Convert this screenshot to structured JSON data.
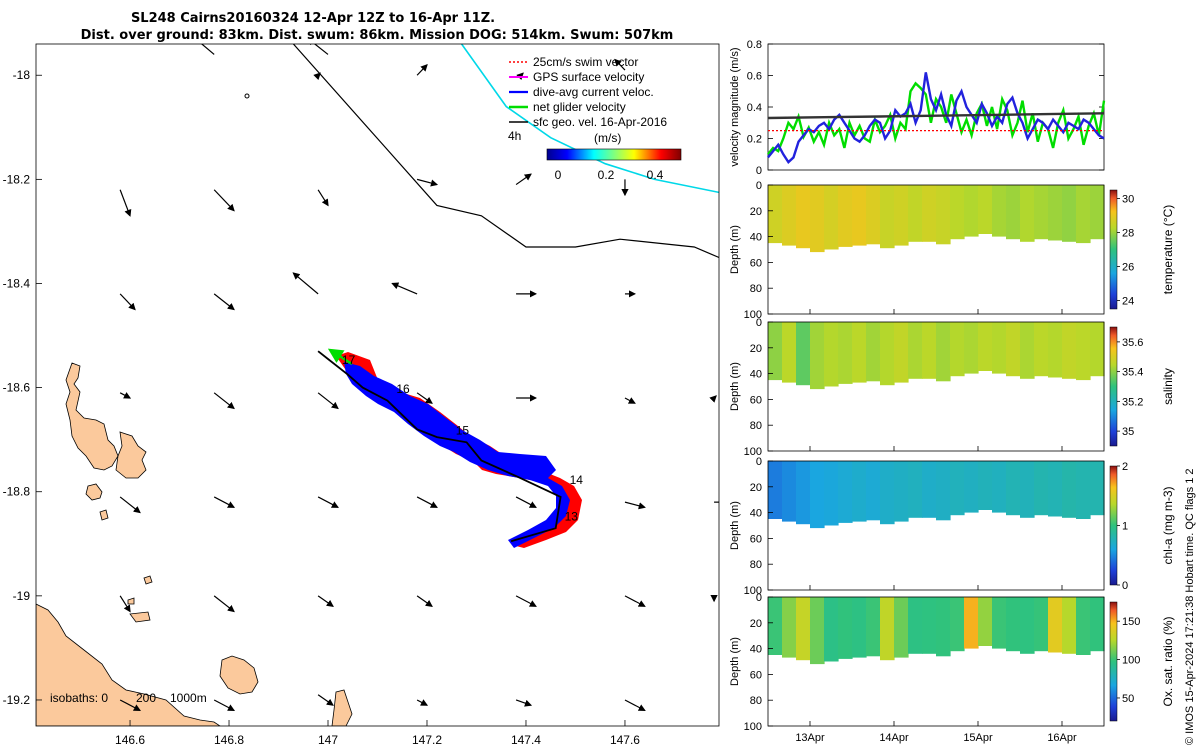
{
  "header": {
    "title_line1": "SL248 Cairns20160324 12-Apr 12Z to 16-Apr 11Z.",
    "title_line2": "Dist. over ground: 83km. Dist. swum: 86km. Mission DOG: 514km. Swum: 507km"
  },
  "colors": {
    "land": "#fbc99c",
    "swim": "#ff0000",
    "gps": "#ff00ff",
    "dive": "#0000ff",
    "net": "#00dd00",
    "geo": "#000000",
    "isobath": "#00d8e8"
  },
  "chart_data": [
    {
      "type": "map",
      "xlim": [
        146.41,
        147.79
      ],
      "ylim": [
        -19.25,
        -17.94
      ],
      "xticks": [
        "146.6",
        "146.8",
        "147",
        "147.2",
        "147.4",
        "147.6"
      ],
      "xtick_values": [
        146.6,
        146.8,
        147.0,
        147.2,
        147.4,
        147.6
      ],
      "yticks": [
        "-18",
        "-18.2",
        "-18.4",
        "-18.6",
        "-18.8",
        "-19",
        "-19.2"
      ],
      "ytick_values": [
        -18.0,
        -18.2,
        -18.4,
        -18.6,
        -18.8,
        -19.0,
        -19.2
      ],
      "legend": {
        "entries": [
          "25cm/s swim vector",
          "GPS surface velocity",
          "dive-avg current veloc.",
          "net glider velocity",
          "sfc geo. vel. 16-Apr-2016"
        ],
        "scale_label": "4h"
      },
      "colorbar": {
        "label": "(m/s)",
        "ticks": [
          "0",
          "0.2",
          "0.4"
        ],
        "range": [
          0,
          0.5
        ]
      },
      "isobaths_label": "isobaths: 0",
      "isobath_depths": [
        "200",
        "1000m"
      ],
      "track_day_labels": [
        "13",
        "14",
        "15",
        "16",
        "17"
      ],
      "track_day_points": [
        [
          147.47,
          -18.855
        ],
        [
          147.48,
          -18.785
        ],
        [
          147.25,
          -18.69
        ],
        [
          147.13,
          -18.61
        ],
        [
          147.02,
          -18.555
        ]
      ],
      "glider_track": [
        [
          147.37,
          -18.895
        ],
        [
          147.46,
          -18.87
        ],
        [
          147.47,
          -18.81
        ],
        [
          147.38,
          -18.77
        ],
        [
          147.31,
          -18.74
        ],
        [
          147.28,
          -18.705
        ],
        [
          147.22,
          -18.695
        ],
        [
          147.18,
          -18.68
        ],
        [
          147.12,
          -18.625
        ],
        [
          147.07,
          -18.6
        ],
        [
          147.04,
          -18.575
        ],
        [
          147.0,
          -18.545
        ],
        [
          146.98,
          -18.53
        ]
      ],
      "isobath_0m": [
        [
          146.93,
          -17.94
        ],
        [
          147.22,
          -18.25
        ],
        [
          147.31,
          -18.27
        ],
        [
          147.4,
          -18.33
        ],
        [
          147.5,
          -18.33
        ],
        [
          147.59,
          -18.315
        ],
        [
          147.74,
          -18.33
        ],
        [
          147.79,
          -18.35
        ]
      ],
      "isobath_200m": [
        [
          147.27,
          -17.94
        ],
        [
          147.36,
          -18.06
        ],
        [
          147.45,
          -18.12
        ],
        [
          147.56,
          -18.17
        ],
        [
          147.66,
          -18.2
        ],
        [
          147.79,
          -18.225
        ]
      ],
      "geo_vectors": [
        [
          146.77,
          -17.96,
          -0.05,
          0.04
        ],
        [
          146.98,
          -18.0,
          0.0,
          0.0
        ],
        [
          147.0,
          -17.96,
          -0.04,
          0.03
        ],
        [
          147.18,
          -18.0,
          0.02,
          0.02
        ],
        [
          147.39,
          -18.0,
          0.0,
          0.0
        ],
        [
          147.6,
          -17.99,
          -0.02,
          0.02
        ],
        [
          146.58,
          -18.22,
          0.02,
          -0.05
        ],
        [
          146.77,
          -18.22,
          0.04,
          -0.04
        ],
        [
          146.98,
          -18.22,
          0.02,
          -0.03
        ],
        [
          147.18,
          -18.2,
          0.04,
          -0.01
        ],
        [
          147.38,
          -18.21,
          0.03,
          0.02
        ],
        [
          147.6,
          -18.2,
          0.0,
          -0.03
        ],
        [
          146.58,
          -18.42,
          0.03,
          -0.03
        ],
        [
          146.77,
          -18.42,
          0.04,
          -0.03
        ],
        [
          146.98,
          -18.42,
          -0.05,
          0.04
        ],
        [
          147.18,
          -18.42,
          -0.05,
          0.02
        ],
        [
          147.38,
          -18.42,
          0.04,
          0.0
        ],
        [
          147.6,
          -18.42,
          0.02,
          0.0
        ],
        [
          146.58,
          -18.61,
          0.02,
          -0.01
        ],
        [
          146.77,
          -18.61,
          0.04,
          -0.03
        ],
        [
          146.98,
          -18.61,
          0.04,
          -0.03
        ],
        [
          147.18,
          -18.61,
          0.03,
          -0.02
        ],
        [
          147.38,
          -18.62,
          0.04,
          0.0
        ],
        [
          147.6,
          -18.62,
          0.02,
          -0.01
        ],
        [
          147.78,
          -18.62,
          0.0,
          0.0
        ],
        [
          146.58,
          -18.81,
          0.04,
          -0.03
        ],
        [
          146.77,
          -18.81,
          0.04,
          -0.02
        ],
        [
          146.98,
          -18.81,
          0.04,
          -0.02
        ],
        [
          147.18,
          -18.81,
          0.04,
          -0.02
        ],
        [
          147.38,
          -18.81,
          0.04,
          -0.02
        ],
        [
          147.6,
          -18.82,
          0.04,
          -0.01
        ],
        [
          147.78,
          -18.82,
          0.03,
          0.0
        ],
        [
          146.58,
          -19.0,
          0.02,
          -0.03
        ],
        [
          146.77,
          -19.0,
          0.04,
          -0.03
        ],
        [
          146.98,
          -19.0,
          0.03,
          -0.02
        ],
        [
          147.18,
          -19.0,
          0.03,
          -0.02
        ],
        [
          147.38,
          -19.0,
          0.04,
          -0.02
        ],
        [
          147.6,
          -19.0,
          0.04,
          -0.02
        ],
        [
          147.78,
          -19.0,
          0.0,
          -0.01
        ],
        [
          146.58,
          -19.2,
          0.04,
          -0.02
        ],
        [
          146.77,
          -19.2,
          0.04,
          -0.02
        ],
        [
          146.98,
          -19.19,
          0.03,
          -0.02
        ],
        [
          147.18,
          -19.2,
          0.02,
          -0.01
        ],
        [
          147.38,
          -19.2,
          0.03,
          -0.01
        ],
        [
          147.6,
          -19.2,
          0.04,
          -0.02
        ]
      ]
    },
    {
      "type": "line",
      "ylabel": "velocity magnitude (m/s)",
      "xlim": [
        0,
        4.2
      ],
      "ylim": [
        0,
        0.8
      ],
      "yticks": [
        "0",
        "0.2",
        "0.4",
        "0.6",
        "0.8"
      ],
      "ytick_values": [
        0,
        0.2,
        0.4,
        0.6,
        0.8
      ],
      "series": [
        {
          "color": "#00dd00",
          "values": [
            0.1,
            0.14,
            0.12,
            0.2,
            0.3,
            0.26,
            0.34,
            0.21,
            0.27,
            0.18,
            0.24,
            0.16,
            0.3,
            0.22,
            0.26,
            0.14,
            0.3,
            0.22,
            0.28,
            0.2,
            0.18,
            0.32,
            0.24,
            0.28,
            0.35,
            0.2,
            0.3,
            0.26,
            0.5,
            0.55,
            0.52,
            0.48,
            0.3,
            0.45,
            0.4,
            0.3,
            0.48,
            0.36,
            0.24,
            0.32,
            0.22,
            0.36,
            0.42,
            0.28,
            0.4,
            0.26,
            0.45,
            0.38,
            0.22,
            0.3,
            0.44,
            0.24,
            0.36,
            0.18,
            0.3,
            0.26,
            0.14,
            0.3,
            0.38,
            0.2,
            0.26,
            0.34,
            0.16,
            0.28,
            0.36,
            0.22,
            0.44
          ]
        },
        {
          "color": "#2222dd",
          "values": [
            0.08,
            0.12,
            0.16,
            0.1,
            0.05,
            0.08,
            0.18,
            0.22,
            0.26,
            0.24,
            0.28,
            0.3,
            0.26,
            0.32,
            0.35,
            0.3,
            0.25,
            0.2,
            0.18,
            0.22,
            0.28,
            0.32,
            0.3,
            0.2,
            0.25,
            0.38,
            0.34,
            0.36,
            0.42,
            0.3,
            0.38,
            0.62,
            0.45,
            0.38,
            0.48,
            0.35,
            0.28,
            0.44,
            0.5,
            0.4,
            0.35,
            0.3,
            0.42,
            0.36,
            0.28,
            0.34,
            0.3,
            0.42,
            0.46,
            0.36,
            0.3,
            0.2,
            0.26,
            0.32,
            0.3,
            0.26,
            0.32,
            0.28,
            0.24,
            0.3,
            0.28,
            0.26,
            0.32,
            0.3,
            0.26,
            0.22,
            0.2
          ]
        },
        {
          "color": "#333333",
          "values": [
            0.33,
            0.335,
            0.34,
            0.345,
            0.35,
            0.355,
            0.36
          ]
        },
        {
          "color": "#ff0000",
          "values": [
            0.25,
            0.25
          ]
        }
      ]
    },
    {
      "type": "heatmap",
      "ylabel": "Depth (m)",
      "clabel": "temperature (°C)",
      "cticks": [
        "24",
        "26",
        "28",
        "30"
      ],
      "clim": [
        23.5,
        30.5
      ],
      "yticks": [
        "0",
        "20",
        "40",
        "60",
        "80",
        "100"
      ],
      "ytick_values": [
        0,
        20,
        40,
        60,
        80,
        100
      ],
      "ylim": [
        0,
        100
      ],
      "bottom_depth": [
        45,
        47,
        49,
        52,
        50,
        48,
        47,
        46,
        49,
        47,
        44,
        44,
        46,
        42,
        40,
        38,
        40,
        42,
        44,
        42,
        43,
        44,
        45,
        42
      ],
      "values": [
        28.6,
        28.8,
        29.0,
        28.9,
        28.7,
        28.9,
        29.0,
        28.8,
        28.5,
        28.6,
        28.4,
        28.6,
        28.5,
        28.3,
        28.2,
        28.3,
        28.1,
        28.0,
        28.2,
        28.1,
        28.0,
        27.9,
        28.1,
        28.0
      ]
    },
    {
      "type": "heatmap",
      "ylabel": "Depth (m)",
      "clabel": "salinity",
      "cticks": [
        "35",
        "35.2",
        "35.4",
        "35.6"
      ],
      "clim": [
        34.9,
        35.7
      ],
      "yticks": [
        "0",
        "20",
        "40",
        "60",
        "80",
        "100"
      ],
      "ytick_values": [
        0,
        20,
        40,
        60,
        80,
        100
      ],
      "ylim": [
        0,
        100
      ],
      "bottom_depth": [
        45,
        47,
        49,
        52,
        50,
        48,
        47,
        46,
        49,
        47,
        44,
        44,
        46,
        42,
        40,
        38,
        40,
        42,
        44,
        42,
        43,
        44,
        45,
        42
      ],
      "values": [
        35.4,
        35.45,
        35.35,
        35.42,
        35.44,
        35.43,
        35.45,
        35.42,
        35.44,
        35.46,
        35.43,
        35.45,
        35.42,
        35.44,
        35.43,
        35.45,
        35.44,
        35.46,
        35.43,
        35.45,
        35.44,
        35.46,
        35.45,
        35.44
      ]
    },
    {
      "type": "heatmap",
      "ylabel": "Depth (m)",
      "clabel": "chl-a (mg m-3)",
      "cticks": [
        "0",
        "1",
        "2"
      ],
      "clim": [
        0,
        2
      ],
      "yticks": [
        "0",
        "20",
        "40",
        "60",
        "80",
        "100"
      ],
      "ytick_values": [
        0,
        20,
        40,
        60,
        80,
        100
      ],
      "ylim": [
        0,
        100
      ],
      "bottom_depth": [
        45,
        47,
        49,
        52,
        50,
        48,
        47,
        46,
        49,
        47,
        44,
        44,
        46,
        42,
        40,
        38,
        40,
        42,
        44,
        42,
        43,
        44,
        45,
        42
      ],
      "values": [
        0.45,
        0.5,
        0.55,
        0.6,
        0.62,
        0.65,
        0.68,
        0.65,
        0.7,
        0.72,
        0.74,
        0.7,
        0.72,
        0.75,
        0.73,
        0.76,
        0.74,
        0.78,
        0.76,
        0.8,
        0.78,
        0.82,
        0.8,
        0.8
      ]
    },
    {
      "type": "heatmap",
      "ylabel": "Depth (m)",
      "clabel": "Ox. sat. ratio (%)",
      "cticks": [
        "50",
        "100",
        "150"
      ],
      "clim": [
        20,
        175
      ],
      "yticks": [
        "0",
        "20",
        "40",
        "60",
        "80",
        "100"
      ],
      "ytick_values": [
        0,
        20,
        40,
        60,
        80,
        100
      ],
      "ylim": [
        0,
        100
      ],
      "xticks": [
        "13Apr",
        "14Apr",
        "15Apr",
        "16Apr"
      ],
      "bottom_depth": [
        45,
        47,
        49,
        52,
        50,
        48,
        47,
        46,
        49,
        47,
        44,
        44,
        46,
        42,
        40,
        38,
        40,
        42,
        44,
        42,
        43,
        44,
        45,
        42
      ],
      "values": [
        100,
        115,
        130,
        110,
        95,
        98,
        96,
        100,
        128,
        110,
        96,
        97,
        98,
        100,
        150,
        118,
        100,
        98,
        97,
        99,
        140,
        125,
        100,
        98
      ]
    }
  ],
  "footer": {
    "side_note": "© IMOS 15-Apr-2024 17:21:38 Hobart time. QC flags 1  2"
  }
}
